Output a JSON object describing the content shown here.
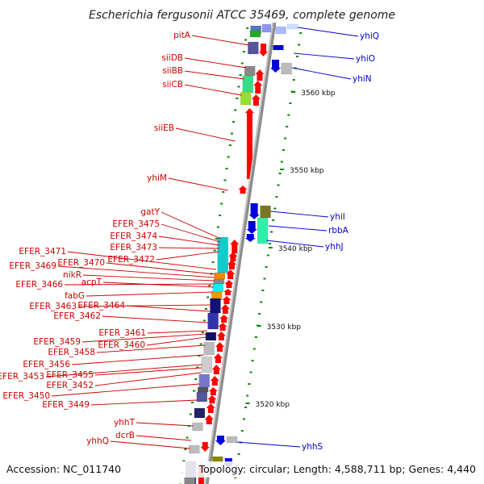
{
  "title": "Escherichia fergusonii ATCC 35469, complete genome",
  "accession": "Accession: NC_011740",
  "topology": "Topology: circular; Length: 4,588,711 bp; Genes: 4,440",
  "colors": {
    "forward": "#ff0000",
    "reverse": "#0000dd",
    "label_fwd": "#cc0000",
    "label_rev": "#0000cc",
    "axis": "#999999",
    "tick": "#008800"
  },
  "scale": [
    {
      "label": "3560 kbp",
      "kbp": 3560
    },
    {
      "label": "3550 kbp",
      "kbp": 3550
    },
    {
      "label": "3540 kbp",
      "kbp": 3540
    },
    {
      "label": "3530 kbp",
      "kbp": 3530
    },
    {
      "label": "3520 kbp",
      "kbp": 3520
    }
  ],
  "labels_forward": [
    "pitA",
    "siiDB",
    "siiBB",
    "siiCB",
    "siiEB",
    "yhiM",
    "gatY",
    "EFER_3475",
    "EFER_3474",
    "EFER_3473",
    "EFER_3471",
    "EFER_3472",
    "EFER_3470",
    "EFER_3469",
    "nikR",
    "EFER_3466",
    "acpT",
    "fabG",
    "EFER_3463",
    "EFER_3464",
    "EFER_3462",
    "EFER_3461",
    "EFER_3459",
    "EFER_3460",
    "EFER_3458",
    "EFER_3456",
    "EFER_3453",
    "EFER_3455",
    "EFER_3452",
    "EFER_3450",
    "EFER_3449",
    "yhhT",
    "dcrB",
    "yhhQ"
  ],
  "labels_reverse": [
    "yhiQ",
    "yhiO",
    "yhiN",
    "yhiI",
    "rbbA",
    "yhhJ",
    "yhhS"
  ]
}
